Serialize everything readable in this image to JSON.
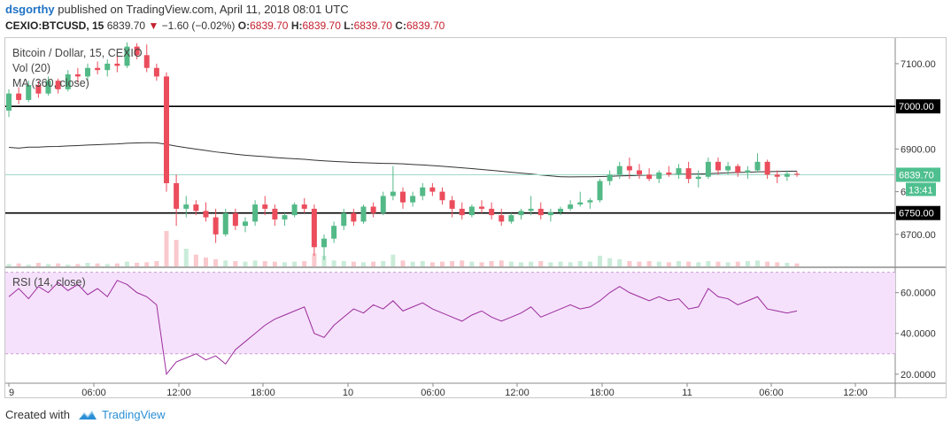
{
  "header": {
    "user": "dsgorthy",
    "published": "published on TradingView.com, April 11, 2018 08:01 UTC",
    "symbol": "CEXIO:BTCUSD, 15",
    "last": "6839.70",
    "change": "−1.60 (−0.02%)",
    "open_label": "O:",
    "open": "6839.70",
    "high_label": "H:",
    "high": "6839.70",
    "low_label": "L:",
    "low": "6839.70",
    "close_label": "C:",
    "close": "6839.70"
  },
  "legend": {
    "title": "Bitcoin / Dollar, 15, CEXIO",
    "volume": "Vol (20)",
    "ma": "MA (360, close)",
    "rsi": "RSI (14, close)"
  },
  "footer": {
    "created_with": "Created with",
    "brand": "TradingView"
  },
  "colors": {
    "up": "#53b987",
    "down": "#eb4d5c",
    "ma_line": "#333333",
    "rsi_line": "#9b2c9c",
    "rsi_band": "#f5e1fb",
    "price_line": "#9fd8c8",
    "level_line": "#000000",
    "last_label_bg": "#4fbf8f"
  },
  "chart_data": [
    {
      "type": "candlestick",
      "title": "Bitcoin / Dollar, 15, CEXIO",
      "y_ticks": [
        6700,
        6800,
        6900,
        7000,
        7100
      ],
      "y_tick_labels": [
        "6700.00",
        "6800.00",
        "6900.00",
        "7000.00",
        "7100.00"
      ],
      "ylim": [
        6625,
        7160
      ],
      "x_ticks": [
        "9",
        "06:00",
        "12:00",
        "18:00",
        "10",
        "06:00",
        "12:00",
        "18:00",
        "11",
        "06:00",
        "12:00"
      ],
      "horizontal_levels": [
        7000.0,
        6750.0
      ],
      "horizontal_level_labels": [
        "7000.00",
        "6750.00"
      ],
      "last_price": 6839.7,
      "last_price_label": "6839.70",
      "countdown": "13:41",
      "ma_period": 360,
      "candles": [
        [
          6990,
          7040,
          6975,
          7030
        ],
        [
          7030,
          7045,
          7005,
          7015
        ],
        [
          7015,
          7060,
          7010,
          7050
        ],
        [
          7050,
          7060,
          7020,
          7030
        ],
        [
          7030,
          7070,
          7025,
          7060
        ],
        [
          7060,
          7065,
          7030,
          7040
        ],
        [
          7040,
          7085,
          7035,
          7075
        ],
        [
          7075,
          7090,
          7055,
          7070
        ],
        [
          7070,
          7100,
          7060,
          7090
        ],
        [
          7090,
          7105,
          7075,
          7085
        ],
        [
          7085,
          7110,
          7070,
          7100
        ],
        [
          7100,
          7120,
          7080,
          7095
        ],
        [
          7095,
          7150,
          7090,
          7140
        ],
        [
          7140,
          7148,
          7110,
          7120
        ],
        [
          7120,
          7145,
          7080,
          7090
        ],
        [
          7090,
          7100,
          7060,
          7070
        ],
        [
          7070,
          7080,
          6800,
          6820
        ],
        [
          6820,
          6840,
          6720,
          6760
        ],
        [
          6760,
          6790,
          6740,
          6770
        ],
        [
          6770,
          6780,
          6745,
          6755
        ],
        [
          6755,
          6775,
          6730,
          6740
        ],
        [
          6740,
          6760,
          6680,
          6700
        ],
        [
          6700,
          6760,
          6695,
          6750
        ],
        [
          6750,
          6760,
          6710,
          6720
        ],
        [
          6720,
          6740,
          6705,
          6730
        ],
        [
          6730,
          6780,
          6720,
          6770
        ],
        [
          6770,
          6790,
          6745,
          6760
        ],
        [
          6760,
          6770,
          6720,
          6735
        ],
        [
          6735,
          6750,
          6720,
          6745
        ],
        [
          6745,
          6775,
          6740,
          6770
        ],
        [
          6770,
          6785,
          6750,
          6760
        ],
        [
          6760,
          6770,
          6650,
          6670
        ],
        [
          6670,
          6700,
          6640,
          6690
        ],
        [
          6690,
          6730,
          6680,
          6720
        ],
        [
          6720,
          6760,
          6710,
          6750
        ],
        [
          6750,
          6760,
          6720,
          6730
        ],
        [
          6730,
          6770,
          6725,
          6765
        ],
        [
          6765,
          6775,
          6740,
          6750
        ],
        [
          6750,
          6800,
          6745,
          6790
        ],
        [
          6790,
          6860,
          6780,
          6800
        ],
        [
          6800,
          6810,
          6760,
          6775
        ],
        [
          6775,
          6800,
          6765,
          6790
        ],
        [
          6790,
          6820,
          6780,
          6810
        ],
        [
          6810,
          6820,
          6790,
          6800
        ],
        [
          6800,
          6810,
          6770,
          6780
        ],
        [
          6780,
          6790,
          6740,
          6760
        ],
        [
          6760,
          6775,
          6735,
          6745
        ],
        [
          6745,
          6770,
          6740,
          6765
        ],
        [
          6765,
          6780,
          6750,
          6760
        ],
        [
          6760,
          6775,
          6735,
          6745
        ],
        [
          6745,
          6760,
          6720,
          6730
        ],
        [
          6730,
          6750,
          6725,
          6745
        ],
        [
          6745,
          6760,
          6735,
          6755
        ],
        [
          6755,
          6790,
          6745,
          6760
        ],
        [
          6760,
          6775,
          6735,
          6745
        ],
        [
          6745,
          6760,
          6730,
          6752
        ],
        [
          6752,
          6765,
          6745,
          6760
        ],
        [
          6760,
          6780,
          6755,
          6770
        ],
        [
          6770,
          6800,
          6765,
          6775
        ],
        [
          6775,
          6785,
          6760,
          6780
        ],
        [
          6780,
          6830,
          6775,
          6825
        ],
        [
          6825,
          6850,
          6815,
          6840
        ],
        [
          6840,
          6870,
          6830,
          6860
        ],
        [
          6860,
          6880,
          6830,
          6850
        ],
        [
          6850,
          6865,
          6830,
          6840
        ],
        [
          6840,
          6855,
          6825,
          6830
        ],
        [
          6830,
          6850,
          6820,
          6845
        ],
        [
          6845,
          6860,
          6835,
          6840
        ],
        [
          6840,
          6865,
          6830,
          6855
        ],
        [
          6855,
          6870,
          6820,
          6830
        ],
        [
          6830,
          6850,
          6810,
          6835
        ],
        [
          6835,
          6880,
          6830,
          6870
        ],
        [
          6870,
          6880,
          6840,
          6850
        ],
        [
          6850,
          6870,
          6840,
          6860
        ],
        [
          6860,
          6865,
          6835,
          6845
        ],
        [
          6845,
          6860,
          6830,
          6850
        ],
        [
          6850,
          6890,
          6845,
          6870
        ],
        [
          6870,
          6875,
          6830,
          6840
        ],
        [
          6840,
          6850,
          6820,
          6835
        ],
        [
          6835,
          6850,
          6825,
          6842
        ],
        [
          6842,
          6848,
          6835,
          6839.7
        ]
      ],
      "volume": [
        4,
        5,
        3,
        6,
        4,
        5,
        3,
        4,
        6,
        5,
        4,
        5,
        8,
        6,
        7,
        9,
        60,
        45,
        30,
        20,
        15,
        12,
        10,
        9,
        8,
        10,
        9,
        8,
        7,
        8,
        9,
        22,
        18,
        10,
        9,
        8,
        7,
        8,
        9,
        20,
        10,
        8,
        9,
        7,
        8,
        9,
        10,
        8,
        7,
        9,
        10,
        8,
        7,
        8,
        9,
        7,
        8,
        7,
        9,
        8,
        18,
        14,
        12,
        9,
        8,
        9,
        8,
        7,
        9,
        8,
        7,
        9,
        8,
        7,
        8,
        9,
        10,
        8,
        7,
        6,
        5
      ]
    },
    {
      "type": "line",
      "title": "RSI (14, close)",
      "y_ticks": [
        20,
        40,
        60
      ],
      "y_tick_labels": [
        "20.0000",
        "40.0000",
        "60.0000"
      ],
      "ylim": [
        16,
        72
      ],
      "band": [
        30,
        70
      ],
      "values": [
        58,
        62,
        57,
        63,
        60,
        65,
        61,
        64,
        59,
        62,
        58,
        66,
        64,
        60,
        58,
        54,
        20,
        26,
        28,
        30,
        27,
        29,
        25,
        32,
        36,
        40,
        44,
        47,
        49,
        51,
        53,
        40,
        38,
        44,
        48,
        52,
        50,
        54,
        52,
        56,
        51,
        53,
        55,
        52,
        50,
        48,
        46,
        49,
        51,
        48,
        46,
        48,
        50,
        53,
        48,
        50,
        52,
        54,
        52,
        53,
        56,
        60,
        63,
        60,
        58,
        56,
        58,
        56,
        57,
        52,
        53,
        62,
        58,
        57,
        54,
        56,
        58,
        52,
        51,
        50,
        51
      ]
    }
  ]
}
